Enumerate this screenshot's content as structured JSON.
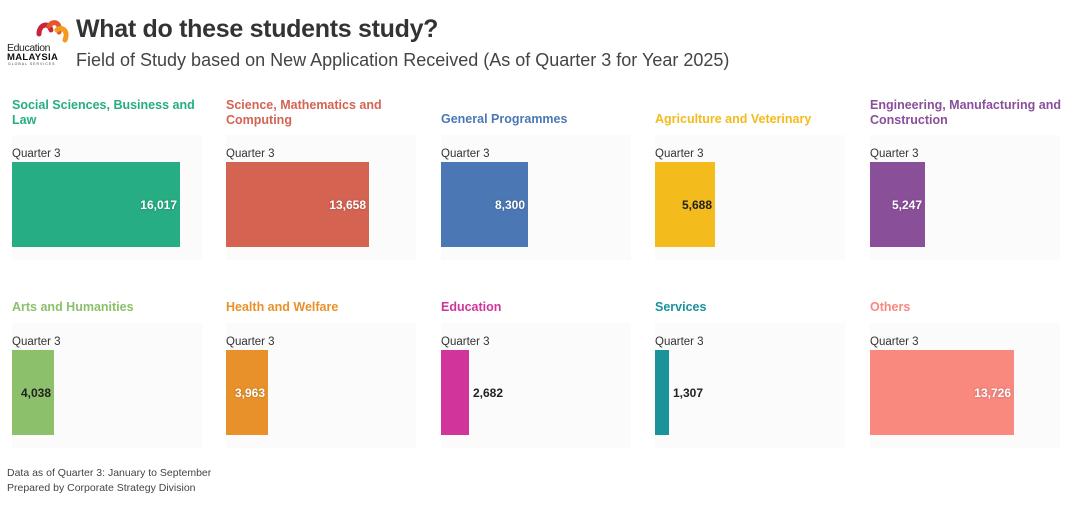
{
  "header": {
    "logo": {
      "line1": "Education",
      "line2": "MALAYSIA",
      "line3": "GLOBAL SERVICES",
      "icon": "emgs-logo-icon"
    },
    "title": "What do these students study?",
    "subtitle": "Field of Study based on New Application Received (As of Quarter 3 for Year 2025)"
  },
  "chart_data": {
    "type": "bar",
    "title": "What do these students study?",
    "subtitle": "Field of Study based on New Application Received (As of Quarter 3 for Year 2025)",
    "orientation": "horizontal",
    "layout": "small-multiples",
    "category_label": "Quarter 3",
    "xlim": [
      0,
      18100
    ],
    "grid": false,
    "panels": [
      {
        "name": "Social Sciences, Business and Law",
        "value": 16017,
        "label": "16,017",
        "color": "#26ad84",
        "label_color": "white",
        "label_pos": "inside"
      },
      {
        "name": "Science, Mathematics and Computing",
        "value": 13658,
        "label": "13,658",
        "color": "#d46352",
        "label_color": "white",
        "label_pos": "inside"
      },
      {
        "name": "General Programmes",
        "value": 8300,
        "label": "8,300",
        "color": "#4b78b4",
        "label_color": "white",
        "label_pos": "inside"
      },
      {
        "name": "Agriculture and Veterinary",
        "value": 5688,
        "label": "5,688",
        "color": "#f3bb1b",
        "label_color": "dark",
        "label_pos": "inside"
      },
      {
        "name": "Engineering, Manufacturing and Construction",
        "value": 5247,
        "label": "5,247",
        "color": "#8a4f99",
        "label_color": "white",
        "label_pos": "inside"
      },
      {
        "name": "Arts and Humanities",
        "value": 4038,
        "label": "4,038",
        "color": "#8cc06a",
        "label_color": "dark",
        "label_pos": "inside"
      },
      {
        "name": "Health and Welfare",
        "value": 3963,
        "label": "3,963",
        "color": "#e8912b",
        "label_color": "white",
        "label_pos": "inside"
      },
      {
        "name": "Education",
        "value": 2682,
        "label": "2,682",
        "color": "#d1359b",
        "label_color": "dark",
        "label_pos": "outside"
      },
      {
        "name": "Services",
        "value": 1307,
        "label": "1,307",
        "color": "#1a939b",
        "label_color": "dark",
        "label_pos": "outside"
      },
      {
        "name": "Others",
        "value": 13726,
        "label": "13,726",
        "color": "#f9887f",
        "label_color": "white",
        "label_pos": "inside"
      }
    ]
  },
  "footer": {
    "line1": "Data as of Quarter 3: January to September",
    "line2": "Prepared by Corporate Strategy Division"
  }
}
